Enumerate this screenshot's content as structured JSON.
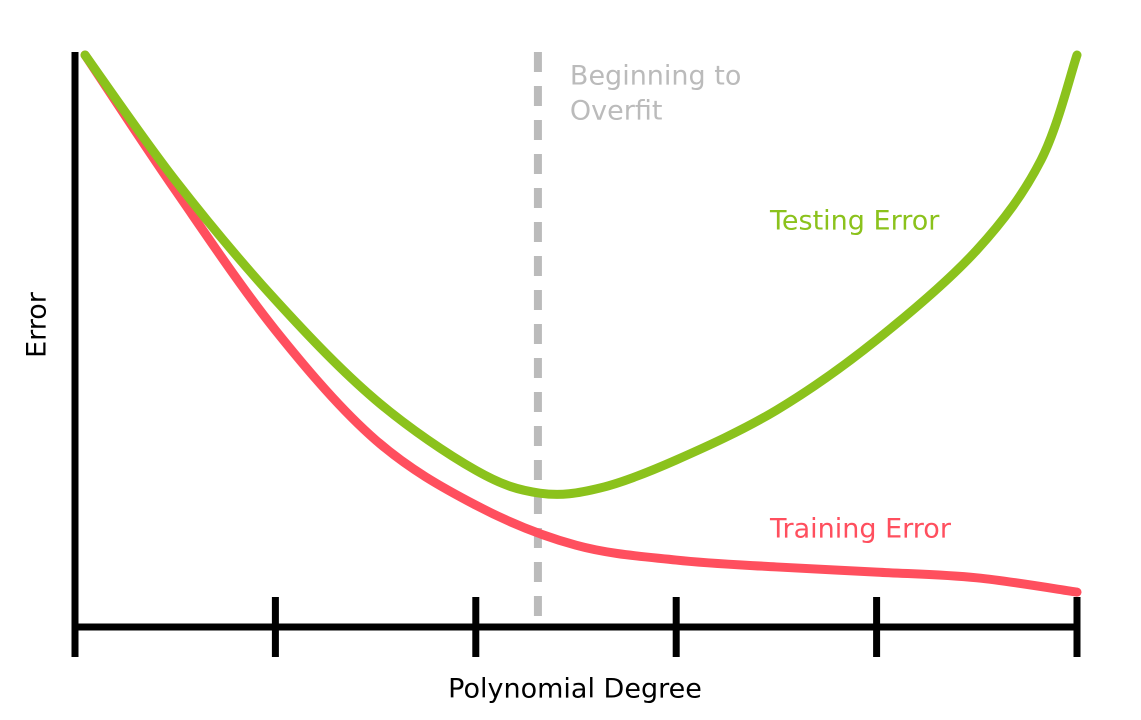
{
  "chart_data": {
    "type": "line",
    "x_label": "Polynomial Degree",
    "y_label": "Error",
    "xlim": [
      0,
      5
    ],
    "ylim": [
      0,
      10
    ],
    "xticks": [
      0,
      1,
      2,
      3,
      4,
      5
    ],
    "series": [
      {
        "name": "Testing Error",
        "color": "#8bc21c",
        "x": [
          0.05,
          0.5,
          1.0,
          1.5,
          2.0,
          2.32,
          2.62,
          3.0,
          3.5,
          4.0,
          4.5,
          4.82,
          5.0
        ],
        "values": [
          10.0,
          7.81,
          5.72,
          3.97,
          2.74,
          2.34,
          2.43,
          2.92,
          3.79,
          5.02,
          6.59,
          8.16,
          10.0
        ]
      },
      {
        "name": "Training Error",
        "color": "#ff4f5e",
        "x": [
          0.05,
          0.5,
          1.0,
          1.5,
          2.0,
          2.5,
          3.0,
          3.5,
          4.0,
          4.5,
          5.0
        ],
        "values": [
          10.0,
          7.64,
          5.19,
          3.27,
          2.13,
          1.43,
          1.17,
          1.05,
          0.96,
          0.86,
          0.61
        ]
      }
    ],
    "annotation": {
      "lines": [
        "Beginning to",
        "Overfit"
      ],
      "x": 2.31,
      "color": "#bbbbbb"
    }
  }
}
